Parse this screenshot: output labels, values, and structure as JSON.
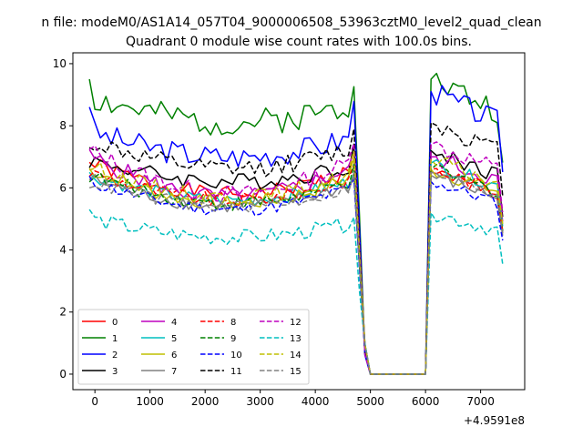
{
  "chart_data": {
    "type": "line",
    "suptitle": "n file: modeM0/AS1A14_057T04_9000006508_53963cztM0_level2_quad_clean",
    "title": "Quadrant 0 module wise count rates with 100.0s bins.",
    "xlabel": "",
    "ylabel": "",
    "x_offset_text": "+4.9591e8",
    "xlim": [
      -400,
      7800
    ],
    "ylim": [
      -0.5,
      10.35
    ],
    "xticks": [
      0,
      1000,
      2000,
      3000,
      4000,
      5000,
      6000,
      7000
    ],
    "xtick_labels": [
      "0",
      "1000",
      "2000",
      "3000",
      "4000",
      "5000",
      "6000",
      "7000"
    ],
    "yticks": [
      0,
      2,
      4,
      6,
      8,
      10
    ],
    "ytick_labels": [
      "0",
      "2",
      "4",
      "6",
      "8",
      "10"
    ],
    "grid": false,
    "legend_location": "lower-left",
    "legend_columns": 4,
    "x": {
      "start": -100,
      "end": 7450,
      "step": 100,
      "note": "one sample per 100 s bin; 76 samples"
    },
    "gap": {
      "drop_start_x": 4800,
      "zero_from_x": 5000,
      "zero_to_x": 6000,
      "rise_end_x": 6100
    },
    "series": [
      {
        "name": "0",
        "color": "#ff0000",
        "dash": "solid",
        "base": 6.8,
        "end": 5.8,
        "pre": 7.0,
        "post": 6.5,
        "min_at_end": 2.9,
        "jitter": 0.25,
        "seed": 1
      },
      {
        "name": "1",
        "color": "#008000",
        "dash": "solid",
        "base": 8.9,
        "end": 8.1,
        "pre": 9.4,
        "post": 9.5,
        "min_at_end": 3.2,
        "jitter": 0.45,
        "seed": 2,
        "start": 9.5
      },
      {
        "name": "2",
        "color": "#0000ff",
        "dash": "solid",
        "base": 7.8,
        "end": 7.0,
        "pre": 8.7,
        "post": 9.1,
        "min_at_end": 3.1,
        "jitter": 0.4,
        "seed": 3,
        "start": 8.6
      },
      {
        "name": "3",
        "color": "#000000",
        "dash": "solid",
        "base": 6.9,
        "end": 6.2,
        "pre": 7.4,
        "post": 7.2,
        "min_at_end": 2.8,
        "jitter": 0.28,
        "seed": 4
      },
      {
        "name": "4",
        "color": "#bf00bf",
        "dash": "solid",
        "base": 7.0,
        "end": 5.7,
        "pre": 7.2,
        "post": 7.0,
        "min_at_end": 2.9,
        "jitter": 0.3,
        "seed": 5
      },
      {
        "name": "5",
        "color": "#00bfbf",
        "dash": "solid",
        "base": 6.4,
        "end": 5.6,
        "pre": 6.6,
        "post": 6.8,
        "min_at_end": 2.7,
        "jitter": 0.22,
        "seed": 6
      },
      {
        "name": "6",
        "color": "#bfbf00",
        "dash": "solid",
        "base": 6.6,
        "end": 5.5,
        "pre": 6.9,
        "post": 6.6,
        "min_at_end": 2.6,
        "jitter": 0.25,
        "seed": 7
      },
      {
        "name": "7",
        "color": "#808080",
        "dash": "solid",
        "base": 6.3,
        "end": 5.4,
        "pre": 6.4,
        "post": 6.4,
        "min_at_end": 2.5,
        "jitter": 0.22,
        "seed": 8
      },
      {
        "name": "8",
        "color": "#ff0000",
        "dash": "dashed",
        "base": 6.5,
        "end": 5.6,
        "pre": 6.8,
        "post": 6.6,
        "min_at_end": 2.6,
        "jitter": 0.24,
        "seed": 9
      },
      {
        "name": "9",
        "color": "#008000",
        "dash": "dashed",
        "base": 6.4,
        "end": 5.5,
        "pre": 6.6,
        "post": 6.6,
        "min_at_end": 2.5,
        "jitter": 0.24,
        "seed": 10
      },
      {
        "name": "10",
        "color": "#0000ff",
        "dash": "dashed",
        "base": 6.2,
        "end": 5.3,
        "pre": 6.2,
        "post": 6.2,
        "min_at_end": 2.4,
        "jitter": 0.22,
        "seed": 11
      },
      {
        "name": "11",
        "color": "#000000",
        "dash": "dashed",
        "base": 7.5,
        "end": 6.6,
        "pre": 7.9,
        "post": 8.1,
        "min_at_end": 3.0,
        "jitter": 0.3,
        "seed": 12,
        "start": 7.3
      },
      {
        "name": "12",
        "color": "#bf00bf",
        "dash": "dashed",
        "base": 7.2,
        "end": 5.8,
        "pre": 7.5,
        "post": 7.4,
        "min_at_end": 2.9,
        "jitter": 0.3,
        "seed": 13
      },
      {
        "name": "13",
        "color": "#00bfbf",
        "dash": "dashed",
        "base": 5.0,
        "end": 4.4,
        "pre": 4.9,
        "post": 5.2,
        "min_at_end": 2.0,
        "jitter": 0.25,
        "seed": 14,
        "start": 5.3
      },
      {
        "name": "14",
        "color": "#bfbf00",
        "dash": "dashed",
        "base": 6.7,
        "end": 5.7,
        "pre": 7.1,
        "post": 6.9,
        "min_at_end": 2.7,
        "jitter": 0.25,
        "seed": 15
      },
      {
        "name": "15",
        "color": "#808080",
        "dash": "dashed",
        "base": 6.2,
        "end": 5.4,
        "pre": 6.5,
        "post": 6.5,
        "min_at_end": 2.4,
        "jitter": 0.22,
        "seed": 16,
        "start": 6.0
      }
    ]
  }
}
